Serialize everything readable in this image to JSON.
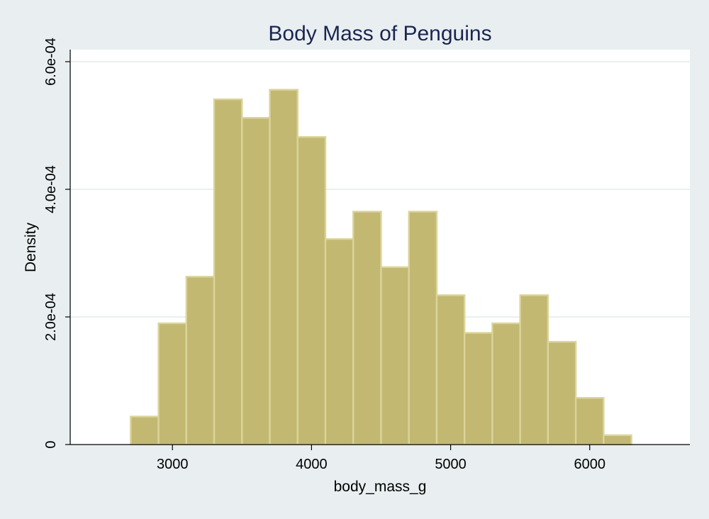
{
  "chart_data": {
    "type": "bar",
    "title": "Body Mass of Penguins",
    "xlabel": "body_mass_g",
    "ylabel": "Density",
    "bin_edges": [
      2700,
      2900,
      3100,
      3300,
      3500,
      3700,
      3900,
      4100,
      4300,
      4500,
      4700,
      4900,
      5100,
      5300,
      5500,
      5700,
      5900,
      6100,
      6300
    ],
    "values": [
      4.39e-05,
      0.00019,
      0.000263,
      0.000541,
      0.000512,
      0.000556,
      0.000482,
      0.000322,
      0.000365,
      0.000278,
      0.000365,
      0.000234,
      0.000175,
      0.00019,
      0.000234,
      0.000161,
      7.31e-05,
      1.46e-05
    ],
    "xlim": [
      2270,
      6720
    ],
    "ylim": [
      0,
      0.0006
    ],
    "x_ticks": [
      3000,
      4000,
      5000,
      6000
    ],
    "x_tick_labels": [
      "3000",
      "4000",
      "5000",
      "6000"
    ],
    "y_ticks": [
      0,
      0.0002,
      0.0004,
      0.0006
    ],
    "y_tick_labels": [
      "0",
      "2.0e-04",
      "4.0e-04",
      "6.0e-04"
    ],
    "grid": true,
    "bar_color": "#c2b872",
    "bar_edge_color": "#dbd49a",
    "background_color": "#e9eff1",
    "plot_background_color": "#ffffff",
    "title_color": "#1a2651",
    "grid_color": "#e3eaea"
  }
}
